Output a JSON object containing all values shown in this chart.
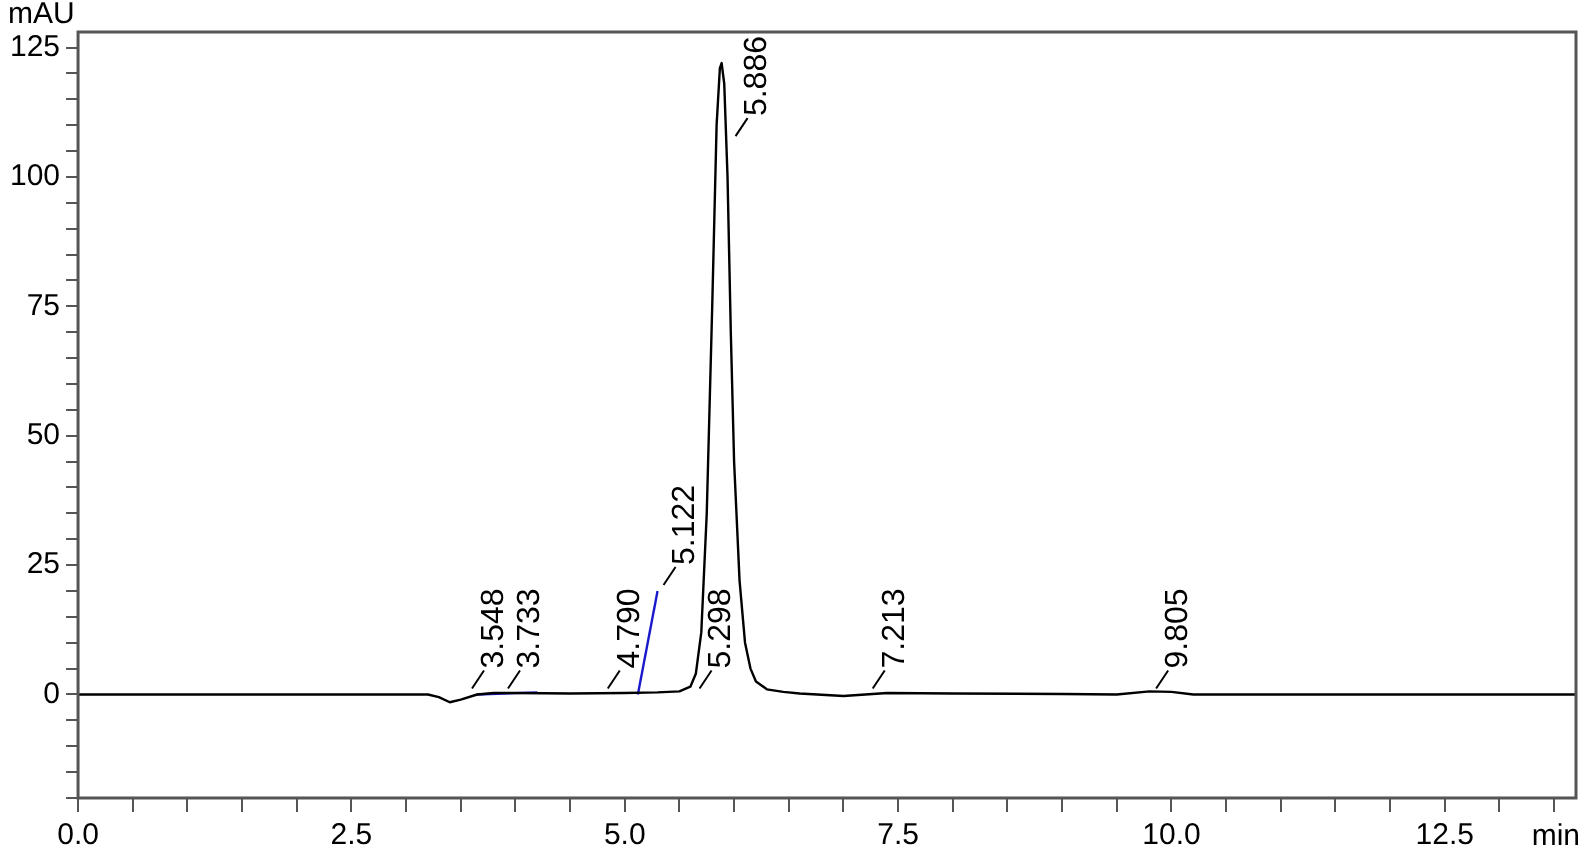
{
  "chart_data": {
    "type": "line",
    "ylabel": "mAU",
    "xlabel": "min",
    "xlim": [
      0,
      13.7
    ],
    "ylim": [
      -20,
      128
    ],
    "xticks": [
      {
        "value": 0,
        "label": "0.0"
      },
      {
        "value": 0.5,
        "label": null
      },
      {
        "value": 1,
        "label": null
      },
      {
        "value": 1.5,
        "label": null
      },
      {
        "value": 2,
        "label": null
      },
      2.5,
      {
        "value": 3,
        "label": null
      },
      {
        "value": 3.5,
        "label": null
      },
      {
        "value": 4,
        "label": null
      },
      {
        "value": 4.5,
        "label": null
      },
      {
        "value": 5,
        "label": "5.0"
      },
      {
        "value": 5.5,
        "label": null
      },
      {
        "value": 6,
        "label": null
      },
      {
        "value": 6.5,
        "label": null
      },
      {
        "value": 7,
        "label": null
      },
      7.5,
      {
        "value": 8,
        "label": null
      },
      {
        "value": 8.5,
        "label": null
      },
      {
        "value": 9,
        "label": null
      },
      {
        "value": 9.5,
        "label": null
      },
      {
        "value": 10,
        "label": "10.0"
      },
      {
        "value": 10.5,
        "label": null
      },
      {
        "value": 11,
        "label": null
      },
      {
        "value": 11.5,
        "label": null
      },
      {
        "value": 12,
        "label": null
      },
      12.5,
      {
        "value": 13,
        "label": null
      },
      {
        "value": 13.5,
        "label": null
      }
    ],
    "yticks": [
      {
        "value": -20,
        "label": null
      },
      {
        "value": -15,
        "label": null
      },
      {
        "value": -10,
        "label": null
      },
      {
        "value": -5,
        "label": null
      },
      0,
      {
        "value": 5,
        "label": null
      },
      {
        "value": 10,
        "label": null
      },
      {
        "value": 15,
        "label": null
      },
      {
        "value": 20,
        "label": null
      },
      25,
      {
        "value": 30,
        "label": null
      },
      {
        "value": 35,
        "label": null
      },
      {
        "value": 40,
        "label": null
      },
      {
        "value": 45,
        "label": null
      },
      50,
      {
        "value": 55,
        "label": null
      },
      {
        "value": 60,
        "label": null
      },
      {
        "value": 65,
        "label": null
      },
      {
        "value": 70,
        "label": null
      },
      75,
      {
        "value": 80,
        "label": null
      },
      {
        "value": 85,
        "label": null
      },
      {
        "value": 90,
        "label": null
      },
      {
        "value": 95,
        "label": null
      },
      100,
      {
        "value": 105,
        "label": null
      },
      {
        "value": 110,
        "label": null
      },
      {
        "value": 115,
        "label": null
      },
      {
        "value": 120,
        "label": null
      },
      125
    ],
    "grid": false,
    "legend": false,
    "marker": "none",
    "line_style": "solid",
    "series": [
      {
        "color": "#000000",
        "x": [
          0,
          3.2,
          3.3,
          3.4,
          3.5,
          3.65,
          3.8,
          4.0,
          4.5,
          5.0,
          5.3,
          5.5,
          5.6,
          5.65,
          5.7,
          5.75,
          5.8,
          5.84,
          5.87,
          5.886,
          5.91,
          5.94,
          5.97,
          6.0,
          6.05,
          6.1,
          6.15,
          6.2,
          6.3,
          6.45,
          6.6,
          7.0,
          7.4,
          8.0,
          9.0,
          9.5,
          9.8,
          10.0,
          10.2,
          11.4,
          13.7
        ],
        "values": [
          0,
          0,
          -0.5,
          -1.5,
          -1,
          0,
          0.3,
          0.3,
          0.2,
          0.3,
          0.4,
          0.6,
          1.5,
          4,
          12,
          35,
          75,
          110,
          121,
          122,
          118,
          100,
          70,
          45,
          22,
          10,
          5,
          2.5,
          1,
          0.5,
          0.2,
          -0.3,
          0.3,
          0.2,
          0.1,
          0,
          0.6,
          0.5,
          0,
          0,
          0
        ]
      },
      {
        "color": "#1a1acc",
        "x": [
          3.65,
          4.2
        ],
        "values": [
          0,
          0.4
        ]
      },
      {
        "color": "#1a1acc",
        "x": [
          5.12,
          5.3
        ],
        "values": [
          0,
          20
        ]
      }
    ],
    "annotations": [
      {
        "text": "3.548",
        "x": 3.548,
        "y": 0
      },
      {
        "text": "3.733",
        "x": 3.733,
        "y": 0
      },
      {
        "text": "4.790",
        "x": 4.79,
        "y": 0
      },
      {
        "text": "5.122",
        "x": 5.3,
        "y": 20
      },
      {
        "text": "5.298",
        "x": 5.298,
        "y": 0
      },
      {
        "text": "5.886",
        "x": 5.886,
        "y": 122
      },
      {
        "text": "7.213",
        "x": 7.213,
        "y": 0
      },
      {
        "text": "9.805",
        "x": 9.805,
        "y": 0
      }
    ]
  }
}
